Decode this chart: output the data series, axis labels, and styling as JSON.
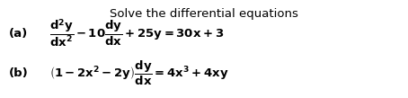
{
  "title": "Solve the differential equations",
  "label_a": "(a)",
  "label_b": "(b)",
  "eq_a": "$\\mathbf{\\dfrac{d^2y}{dx^2}-10\\dfrac{dy}{dx}+25y=30x+3}$",
  "eq_b": "$\\mathbf{\\left(1-2x^2-2y\\right)\\dfrac{dy}{dx}=4x^3+4xy}$",
  "bg_color": "#ffffff",
  "text_color": "#000000",
  "title_fontsize": 9.5,
  "label_fontsize": 9.5,
  "eq_fontsize": 9.5,
  "fig_width": 4.54,
  "fig_height": 1.09,
  "dpi": 100
}
